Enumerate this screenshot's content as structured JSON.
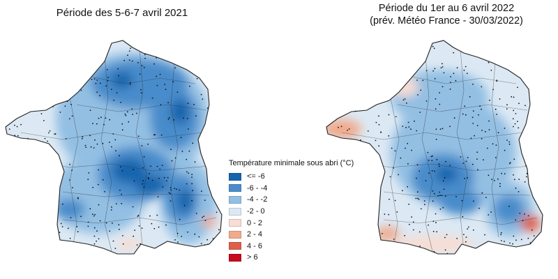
{
  "maps": {
    "left": {
      "title": "Période des 5-6-7 avril 2021"
    },
    "right": {
      "title_line1": "Période du 1er au 6 avril 2022",
      "title_line2": "(prév. Météo France - 30/03/2022)"
    }
  },
  "legend": {
    "title": "Température minimale sous abri (°C)",
    "items": [
      {
        "label": "<= -6",
        "color": "#1565ad"
      },
      {
        "label": "-6 - -4",
        "color": "#4a8ccb"
      },
      {
        "label": "-4 - -2",
        "color": "#93bfe3"
      },
      {
        "label": "-2 - 0",
        "color": "#dce9f4"
      },
      {
        "label": "0 - 2",
        "color": "#f7ddd3"
      },
      {
        "label": "2 - 4",
        "color": "#f0aa8c"
      },
      {
        "label": "4 - 6",
        "color": "#de5f4a"
      },
      {
        "label": "> 6",
        "color": "#c60c1d"
      }
    ]
  }
}
